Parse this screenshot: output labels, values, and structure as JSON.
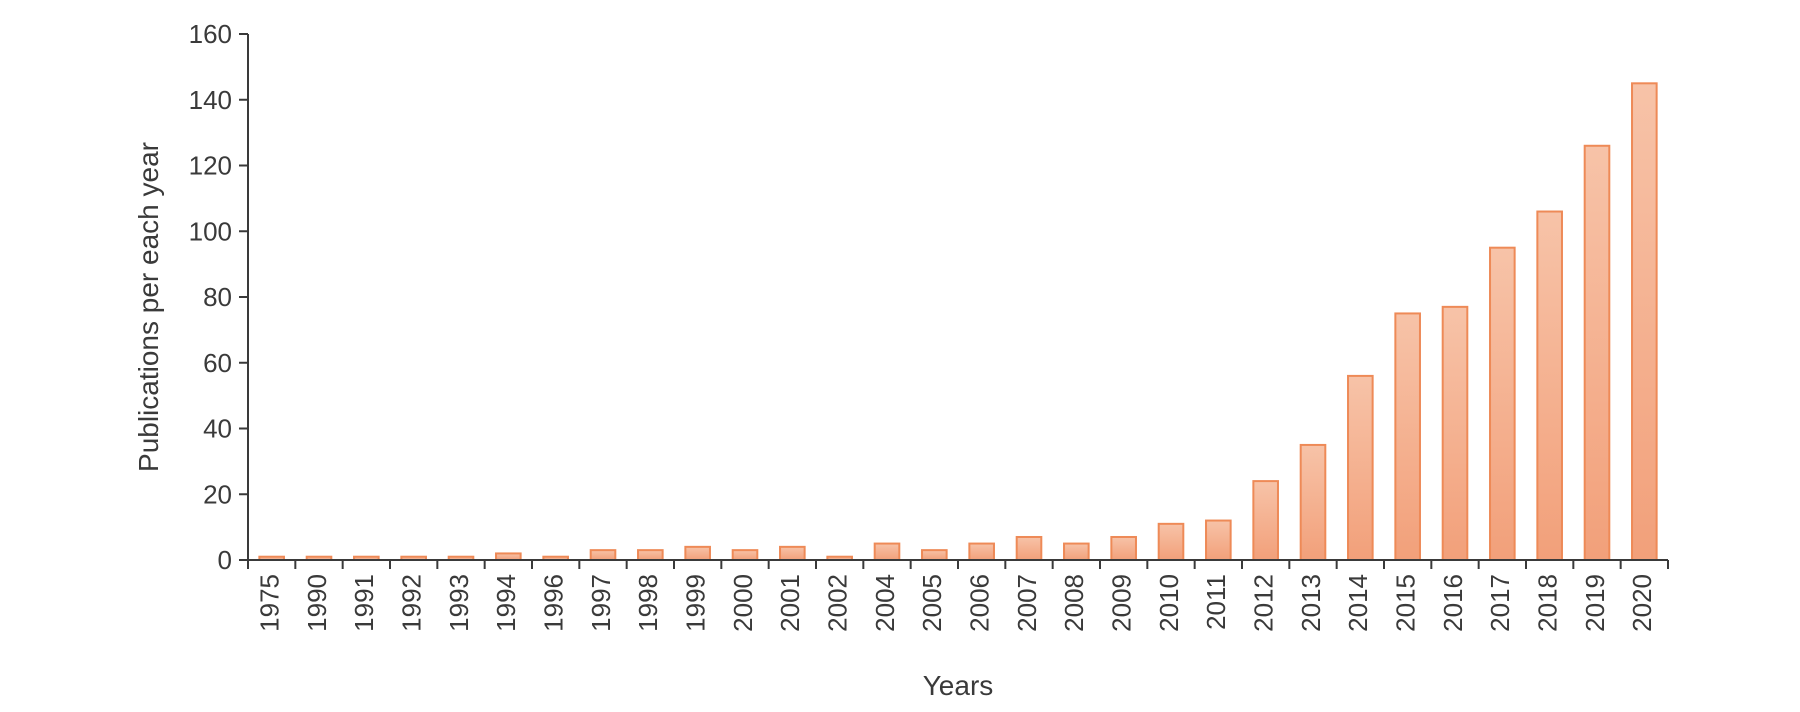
{
  "chart_data": {
    "type": "bar",
    "title": "",
    "xlabel": "Years",
    "ylabel": "Publications per each year",
    "ylim": [
      0,
      160
    ],
    "yticks": [
      0,
      20,
      40,
      60,
      80,
      100,
      120,
      140,
      160
    ],
    "grid": false,
    "legend": "none",
    "colors": {
      "bar_fill_top": "#f7c3a8",
      "bar_fill_bottom": "#f2a07a",
      "bar_stroke": "#ee8a57",
      "axis": "#3a3a3a",
      "text": "#3a3a3a"
    },
    "categories": [
      "1975",
      "1990",
      "1991",
      "1992",
      "1993",
      "1994",
      "1996",
      "1997",
      "1998",
      "1999",
      "2000",
      "2001",
      "2002",
      "2004",
      "2005",
      "2006",
      "2007",
      "2008",
      "2009",
      "2010",
      "2011",
      "2012",
      "2013",
      "2014",
      "2015",
      "2016",
      "2017",
      "2018",
      "2019",
      "2020"
    ],
    "values": [
      1,
      1,
      1,
      1,
      1,
      2,
      1,
      3,
      3,
      4,
      3,
      4,
      1,
      5,
      3,
      5,
      7,
      5,
      7,
      11,
      12,
      24,
      35,
      56,
      75,
      77,
      95,
      106,
      126,
      145
    ]
  }
}
